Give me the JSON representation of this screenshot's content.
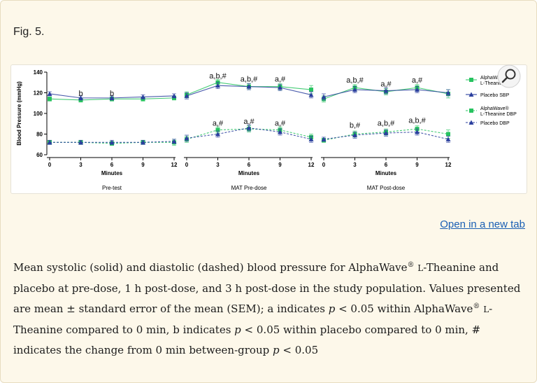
{
  "figure_label": "Fig. 5.",
  "open_link": "Open in a new tab",
  "caption": {
    "p1": "Mean systolic (solid) and diastolic (dashed) blood pressure for AlphaWave",
    "reg1": "®",
    "p2": "L",
    "p3": "-Theanine and placebo at pre-dose, 1 h post-dose, and 3  h post-dose in the study population. Values presented are mean ± standard error of the mean (SEM); a indicates ",
    "pi1": "p",
    "p4": " < 0.05 within AlphaWave",
    "reg2": "®",
    "p5": "L",
    "p6": "-Theanine compared to 0  min, b indicates ",
    "pi2": "p",
    "p7": " < 0.05 within placebo compared to 0  min, # indicates the change from 0  min between-group ",
    "pi3": "p",
    "p8": " < 0.05"
  },
  "colors": {
    "alpha": "#27c35f",
    "placebo": "#2b3f9e"
  },
  "icons": {
    "zoom": "magnifier-icon"
  },
  "chart_data": {
    "type": "line",
    "ylabel": "Blood Pressure (mmHg)",
    "xlabel": "Minutes",
    "ylim": [
      60,
      140
    ],
    "yticks": [
      "60",
      "80",
      "100",
      "120",
      "140"
    ],
    "xticks": [
      "0",
      "3",
      "6",
      "9",
      "12"
    ],
    "x": [
      0,
      3,
      6,
      9,
      12
    ],
    "legend": [
      {
        "label": "AlphaWave® L-Theanine SBP",
        "color": "#27c35f",
        "marker": "square",
        "dash": false
      },
      {
        "label": "Placebo SBP",
        "color": "#2b3f9e",
        "marker": "triangle",
        "dash": false
      },
      {
        "label": "AlphaWave® L-Theanine DBP",
        "color": "#27c35f",
        "marker": "square",
        "dash": true
      },
      {
        "label": "Placebo DBP",
        "color": "#2b3f9e",
        "marker": "triangle",
        "dash": true
      }
    ],
    "panels": [
      {
        "title": "Pre-test",
        "series": [
          {
            "name": "AlphaWave® L-Theanine SBP",
            "values": [
              114,
              113,
              114,
              114,
              115
            ],
            "err": [
              2,
              2,
              2,
              2,
              2
            ]
          },
          {
            "name": "Placebo SBP",
            "values": [
              119,
              115,
              115,
              116,
              117
            ],
            "err": [
              2,
              2,
              2,
              2,
              2
            ]
          },
          {
            "name": "AlphaWave® L-Theanine DBP",
            "values": [
              72,
              72,
              71,
              72,
              72
            ],
            "err": [
              2,
              2,
              2,
              2,
              3
            ]
          },
          {
            "name": "Placebo DBP",
            "values": [
              72,
              72,
              72,
              72,
              73
            ],
            "err": [
              2,
              2,
              2,
              2,
              2
            ]
          }
        ],
        "annotations": [
          {
            "x": 3,
            "y": 117,
            "text": "b"
          },
          {
            "x": 6,
            "y": 117,
            "text": "b"
          }
        ]
      },
      {
        "title": "MAT Pre-dose",
        "series": [
          {
            "name": "AlphaWave® L-Theanine SBP",
            "values": [
              118,
              130,
              126,
              126,
              123
            ],
            "err": [
              3,
              3,
              3,
              3,
              4
            ]
          },
          {
            "name": "Placebo SBP",
            "values": [
              117,
              127,
              126,
              125,
              118
            ],
            "err": [
              3,
              3,
              3,
              3,
              3
            ]
          },
          {
            "name": "AlphaWave® L-Theanine DBP",
            "values": [
              75,
              84,
              85,
              84,
              77
            ],
            "err": [
              3,
              3,
              3,
              3,
              3
            ]
          },
          {
            "name": "Placebo DBP",
            "values": [
              76,
              80,
              86,
              82,
              75
            ],
            "err": [
              3,
              3,
              3,
              3,
              3
            ]
          }
        ],
        "annotations": [
          {
            "x": 3,
            "y": 134,
            "text": "a,b,#"
          },
          {
            "x": 6,
            "y": 131,
            "text": "a,b,#"
          },
          {
            "x": 9,
            "y": 131,
            "text": "a,#"
          },
          {
            "x": 3,
            "y": 88,
            "text": "a,#"
          },
          {
            "x": 6,
            "y": 90,
            "text": "a,#"
          },
          {
            "x": 9,
            "y": 88,
            "text": "a,#"
          }
        ]
      },
      {
        "title": "MAT Post-dose",
        "series": [
          {
            "name": "AlphaWave® L-Theanine SBP",
            "values": [
              114,
              125,
              121,
              125,
              119
            ],
            "err": [
              3,
              3,
              3,
              3,
              4
            ]
          },
          {
            "name": "Placebo SBP",
            "values": [
              116,
              123,
              122,
              123,
              120
            ],
            "err": [
              3,
              3,
              3,
              3,
              3
            ]
          },
          {
            "name": "AlphaWave® L-Theanine DBP",
            "values": [
              74,
              80,
              82,
              85,
              80
            ],
            "err": [
              2,
              3,
              3,
              3,
              4
            ]
          },
          {
            "name": "Placebo DBP",
            "values": [
              75,
              79,
              81,
              82,
              75
            ],
            "err": [
              2,
              3,
              3,
              3,
              3
            ]
          }
        ],
        "annotations": [
          {
            "x": 3,
            "y": 130,
            "text": "a,b,#"
          },
          {
            "x": 6,
            "y": 126,
            "text": "a,#"
          },
          {
            "x": 9,
            "y": 130,
            "text": "a,#"
          },
          {
            "x": 3,
            "y": 86,
            "text": "b,#"
          },
          {
            "x": 6,
            "y": 88,
            "text": "a,b,#"
          },
          {
            "x": 9,
            "y": 91,
            "text": "a,b,#"
          }
        ]
      }
    ]
  }
}
